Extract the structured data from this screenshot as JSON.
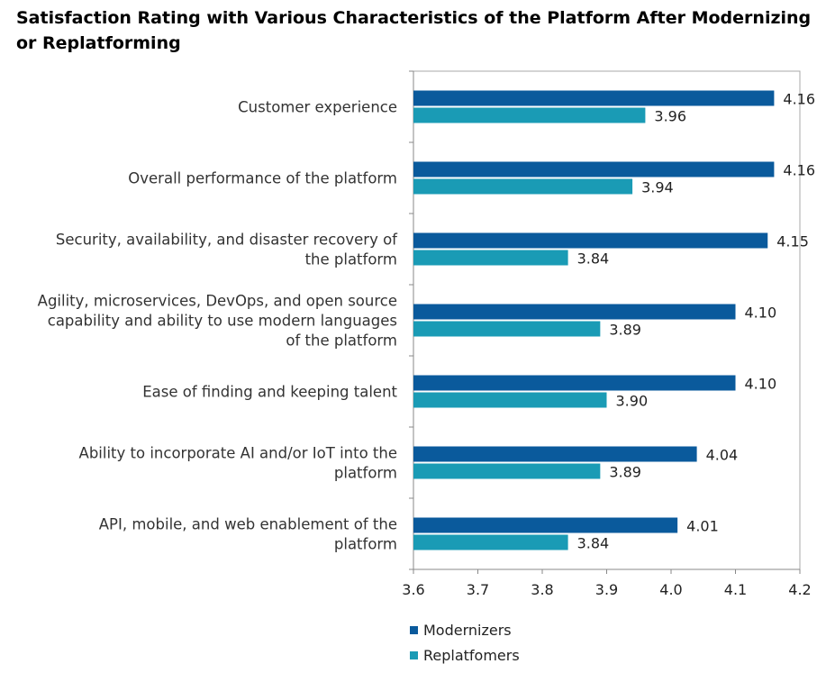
{
  "chart_data": {
    "type": "bar",
    "orientation": "horizontal",
    "title": "Satisfaction Rating with Various Characteristics of the Platform After Modernizing or Replatforming",
    "categories": [
      [
        "Customer experience"
      ],
      [
        "Overall performance of the platform"
      ],
      [
        "Security, availability, and disaster recovery of",
        "the platform"
      ],
      [
        "Agility, microservices, DevOps, and open source",
        "capability and ability to use modern languages",
        "of the platform"
      ],
      [
        "Ease of finding and keeping talent"
      ],
      [
        "Ability to incorporate AI and/or IoT into the",
        "platform"
      ],
      [
        "API, mobile, and web enablement of the",
        "platform"
      ]
    ],
    "series": [
      {
        "name": "Modernizers",
        "color": "#0a5a9c",
        "values": [
          4.16,
          4.16,
          4.15,
          4.1,
          4.1,
          4.04,
          4.01
        ],
        "labels": [
          "4.16",
          "4.16",
          "4.15",
          "4.10",
          "4.10",
          "4.04",
          "4.01"
        ]
      },
      {
        "name": "Replatfomers",
        "color": "#1a9bb5",
        "values": [
          3.96,
          3.94,
          3.84,
          3.89,
          3.9,
          3.89,
          3.84
        ],
        "labels": [
          "3.96",
          "3.94",
          "3.84",
          "3.89",
          "3.90",
          "3.89",
          "3.84"
        ]
      }
    ],
    "xlim": [
      3.6,
      4.2
    ],
    "xticks": [
      "3.6",
      "3.7",
      "3.8",
      "3.9",
      "4.0",
      "4.1",
      "4.2"
    ],
    "grid": false,
    "legend_position": "bottom"
  }
}
